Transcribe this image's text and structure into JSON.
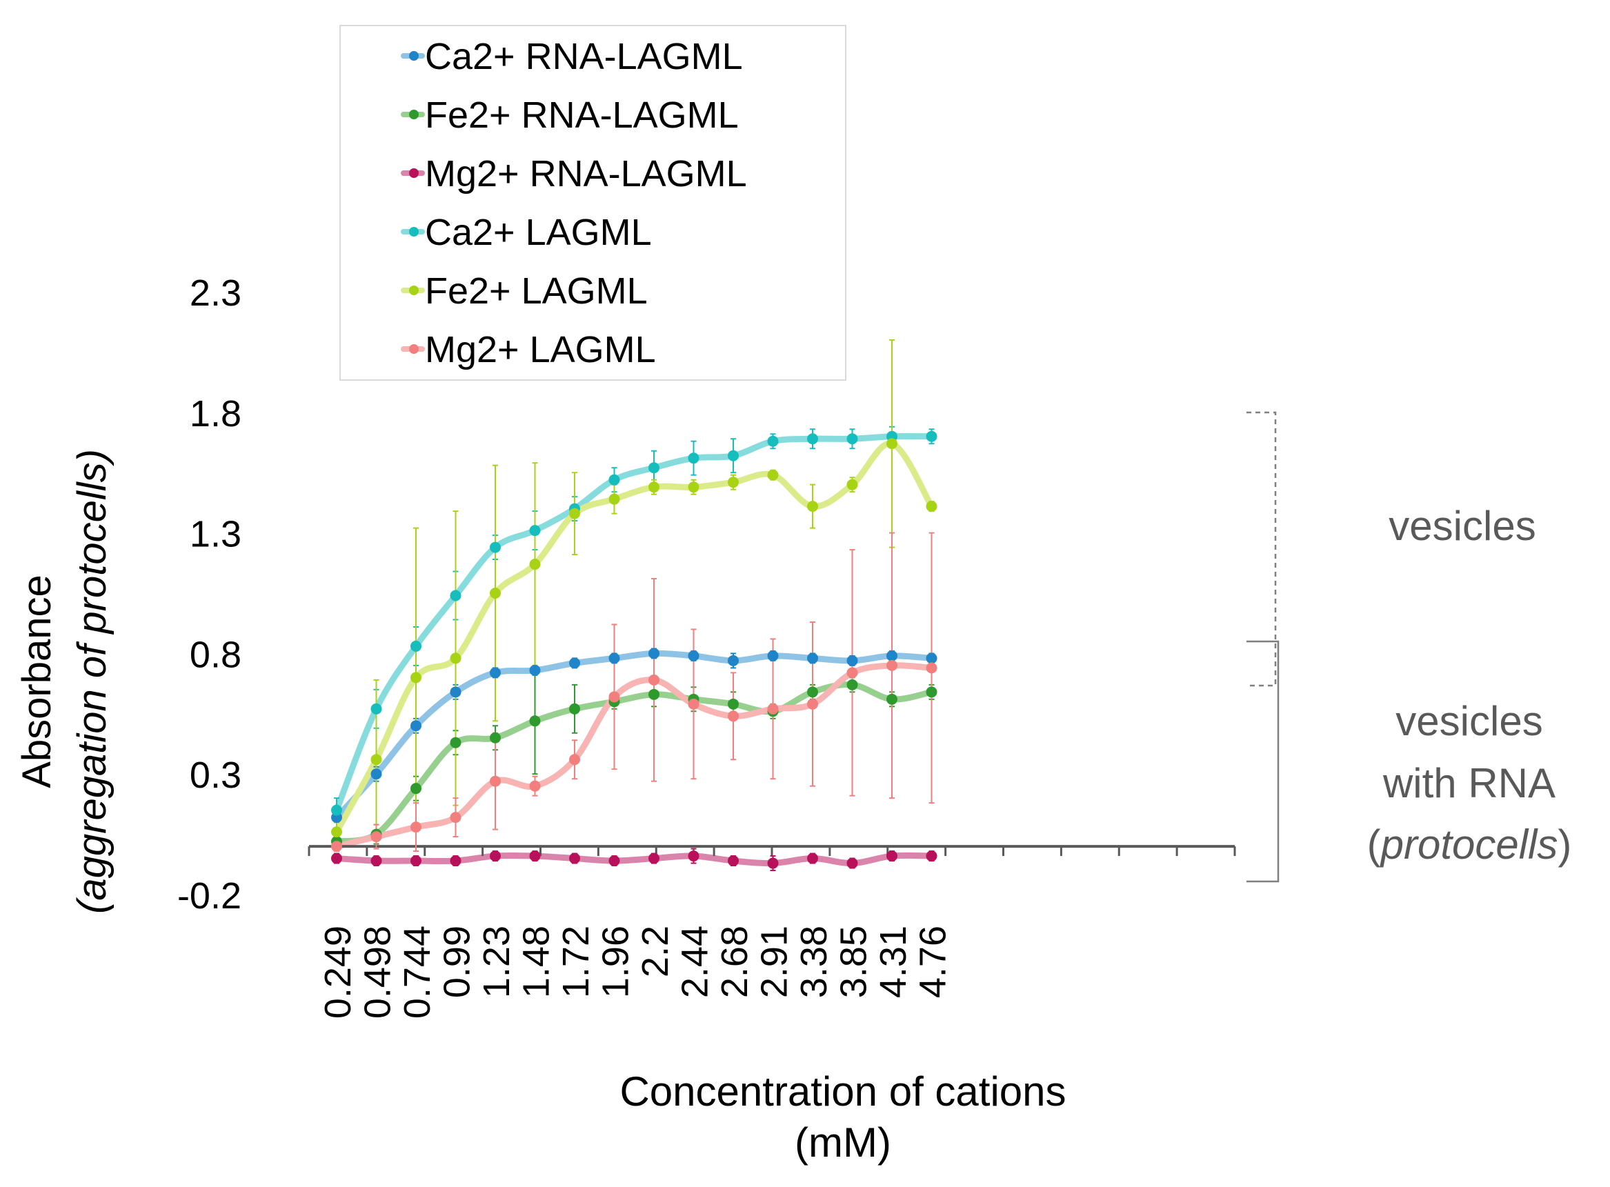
{
  "chart_data": {
    "type": "line",
    "title": "",
    "xlabel_line1": "Concentration of cations",
    "xlabel_line2": "(mM)",
    "ylabel_line1": "Absorbance",
    "ylabel_line2": "(aggregation of protocells)",
    "x": [
      "0.249",
      "0.498",
      "0.744",
      "0.99",
      "1.23",
      "1.48",
      "1.72",
      "1.96",
      "2.2",
      "2.44",
      "2.68",
      "2.91",
      "3.38",
      "3.85",
      "4.31",
      "4.76"
    ],
    "yticks": [
      "2.3",
      "1.8",
      "1.3",
      "0.8",
      "0.3",
      "-0.2"
    ],
    "ylim": [
      -0.2,
      2.3
    ],
    "grid": false,
    "legend_position": "top-left",
    "series": [
      {
        "name": "Ca2+ RNA-LAGML",
        "line_color": "#8ec3e6",
        "marker_color": "#1f84c8",
        "values": [
          0.12,
          0.3,
          0.5,
          0.64,
          0.72,
          0.73,
          0.76,
          0.78,
          0.8,
          0.79,
          0.77,
          0.79,
          0.78,
          0.77,
          0.79,
          0.78
        ],
        "errors": [
          0.02,
          0.03,
          0.03,
          0.03,
          0.02,
          0.02,
          0.02,
          0.02,
          0.02,
          0.02,
          0.03,
          0.02,
          0.02,
          0.02,
          0.02,
          0.02
        ]
      },
      {
        "name": "Fe2+ RNA-LAGML",
        "line_color": "#97cf8e",
        "marker_color": "#2e9a2e",
        "values": [
          0.02,
          0.05,
          0.24,
          0.43,
          0.45,
          0.52,
          0.57,
          0.6,
          0.63,
          0.61,
          0.59,
          0.56,
          0.64,
          0.67,
          0.61,
          0.64
        ],
        "errors": [
          0.02,
          0.04,
          0.05,
          0.05,
          0.05,
          0.22,
          0.1,
          0.03,
          0.05,
          0.05,
          0.05,
          0.03,
          0.03,
          0.03,
          0.03,
          0.03
        ]
      },
      {
        "name": "Mg2+ RNA-LAGML",
        "line_color": "#db84ab",
        "marker_color": "#b8105a",
        "values": [
          -0.05,
          -0.06,
          -0.06,
          -0.06,
          -0.04,
          -0.04,
          -0.05,
          -0.06,
          -0.05,
          -0.04,
          -0.06,
          -0.07,
          -0.05,
          -0.07,
          -0.04,
          -0.04
        ],
        "errors": [
          0.02,
          0.02,
          0.02,
          0.02,
          0.02,
          0.02,
          0.02,
          0.02,
          0.02,
          0.03,
          0.02,
          0.03,
          0.02,
          0.02,
          0.02,
          0.02
        ]
      },
      {
        "name": "Ca2+ LAGML",
        "line_color": "#86dcdc",
        "marker_color": "#16bdbd",
        "values": [
          0.15,
          0.57,
          0.83,
          1.04,
          1.24,
          1.31,
          1.4,
          1.52,
          1.57,
          1.61,
          1.62,
          1.68,
          1.69,
          1.69,
          1.7,
          1.7
        ],
        "errors": [
          0.05,
          0.08,
          0.08,
          0.1,
          0.05,
          0.08,
          0.05,
          0.05,
          0.07,
          0.07,
          0.07,
          0.03,
          0.04,
          0.04,
          0.04,
          0.03
        ]
      },
      {
        "name": "Fe2+ LAGML",
        "line_color": "#dbeb8a",
        "marker_color": "#a8d315",
        "values": [
          0.06,
          0.36,
          0.7,
          0.78,
          1.05,
          1.17,
          1.38,
          1.44,
          1.49,
          1.49,
          1.51,
          1.54,
          1.41,
          1.5,
          1.67,
          1.41
        ],
        "errors": [
          0.04,
          0.33,
          0.62,
          0.61,
          0.53,
          0.42,
          0.17,
          0.06,
          0.03,
          0.03,
          0.03,
          0.02,
          0.09,
          0.03,
          0.43,
          0.02
        ]
      },
      {
        "name": "Mg2+ LAGML",
        "line_color": "#f8b3b3",
        "marker_color": "#f27e7e",
        "values": [
          0.0,
          0.04,
          0.08,
          0.12,
          0.27,
          0.25,
          0.36,
          0.62,
          0.69,
          0.59,
          0.54,
          0.57,
          0.59,
          0.72,
          0.75,
          0.74
        ],
        "errors": [
          0.02,
          0.05,
          0.1,
          0.08,
          0.2,
          0.04,
          0.08,
          0.3,
          0.42,
          0.31,
          0.18,
          0.29,
          0.34,
          0.51,
          0.55,
          0.56
        ]
      }
    ],
    "annotations": {
      "vesicles": "vesicles",
      "vesicles_rna_line1": "vesicles",
      "vesicles_rna_line2": "with RNA",
      "vesicles_rna_line3_open": "(",
      "vesicles_rna_line3_italic": "protocells",
      "vesicles_rna_line3_close": ")"
    },
    "colors": {
      "axis": "#555555",
      "text": "#000000",
      "annotation_text": "#595959",
      "bracket": "#7f7f7f"
    }
  }
}
